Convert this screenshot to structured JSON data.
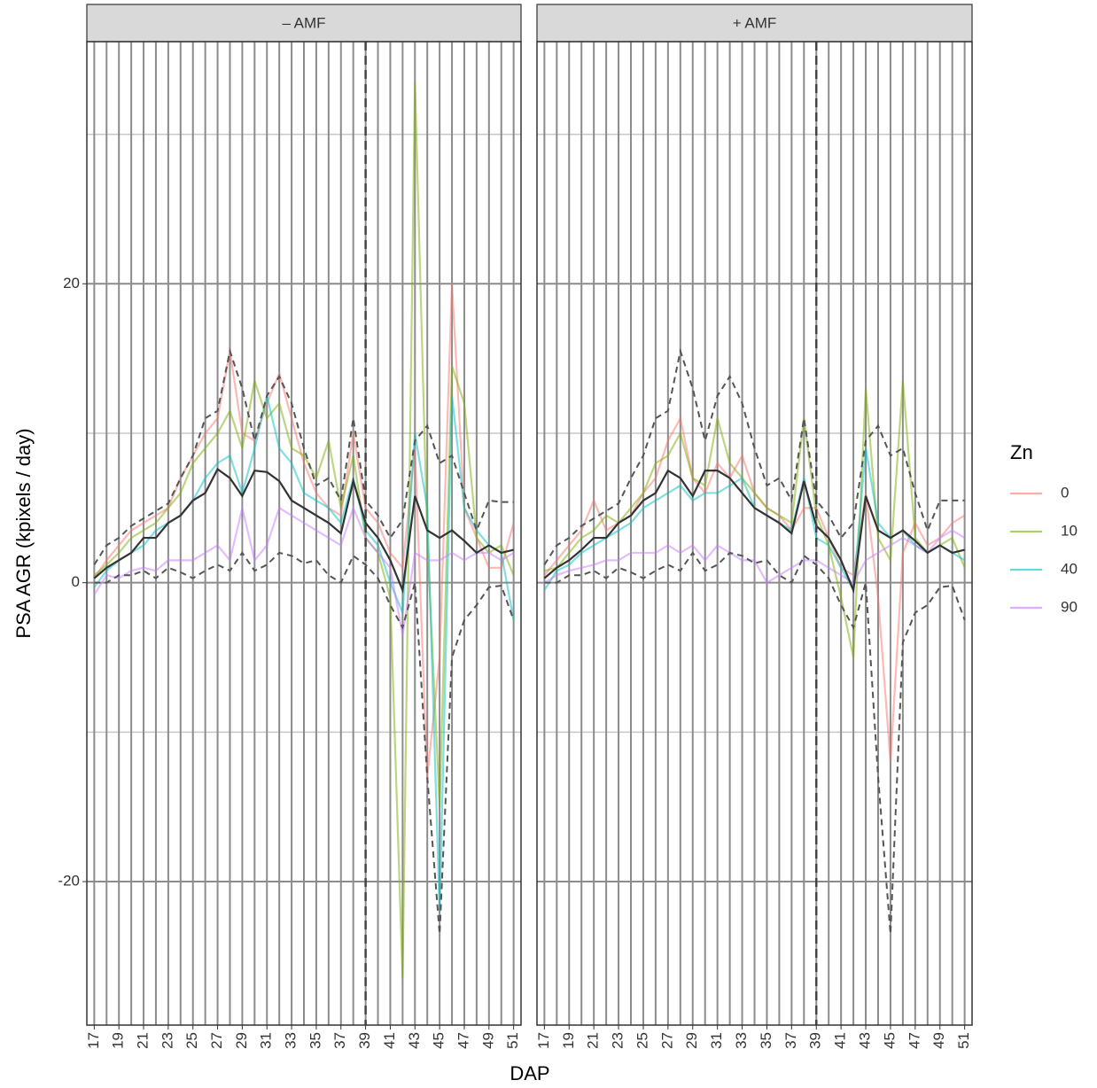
{
  "chart_data": [
    {
      "type": "line",
      "title": "– AMF",
      "xlabel": "DAP",
      "ylabel": "PSA AGR (kpixels / day)",
      "legend_title": "Zn",
      "legend": "right",
      "x": [
        17,
        18,
        19,
        20,
        21,
        22,
        23,
        24,
        25,
        26,
        27,
        28,
        29,
        30,
        31,
        32,
        33,
        34,
        35,
        36,
        37,
        38,
        39,
        40,
        41,
        42,
        43,
        44,
        45,
        46,
        47,
        48,
        49,
        50,
        51
      ],
      "xlim": [
        16.4,
        51.6
      ],
      "xticks": [
        17,
        19,
        21,
        23,
        25,
        27,
        29,
        31,
        33,
        35,
        37,
        39,
        41,
        43,
        45,
        47,
        49,
        51
      ],
      "ylim": [
        -29.6,
        36.2
      ],
      "yticks": [
        -20,
        0,
        20
      ],
      "yminor": [
        -10,
        10,
        30
      ],
      "grid": true,
      "vline": 39,
      "series": [
        {
          "name": "0",
          "color": "#F8766D",
          "values": [
            0.3,
            1.5,
            2.5,
            3.5,
            4,
            4.5,
            5,
            7,
            8.5,
            10,
            11,
            15.5,
            10,
            9.5,
            12,
            14,
            11,
            8,
            6,
            5,
            4.5,
            10,
            5,
            4,
            2,
            1,
            9,
            -13,
            -5,
            20,
            5,
            3,
            1,
            1,
            4
          ]
        },
        {
          "name": "10",
          "color": "#7CAE00",
          "values": [
            0.5,
            1.2,
            2,
            3,
            3.5,
            4,
            5,
            6,
            8,
            9,
            10,
            11.5,
            9,
            13.5,
            11,
            12,
            9,
            8.5,
            7,
            9.5,
            5,
            8.5,
            3,
            2,
            -1,
            -26.5,
            33.5,
            3,
            -15,
            14.5,
            12,
            3,
            2,
            2.5,
            0.5
          ]
        },
        {
          "name": "40",
          "color": "#00BFC4",
          "values": [
            -0.3,
            0.8,
            1.5,
            2,
            2.5,
            3.5,
            4,
            4.5,
            5.5,
            7,
            8,
            8.5,
            6,
            9,
            12.5,
            9,
            8,
            6,
            5.5,
            5,
            4,
            7,
            3.5,
            2.5,
            0,
            -2,
            10,
            5,
            -22,
            12.5,
            5,
            3.5,
            2.5,
            2,
            -2.5
          ]
        },
        {
          "name": "90",
          "color": "#C77CFF",
          "values": [
            -0.8,
            0.5,
            0.3,
            0.8,
            1,
            0.8,
            1.5,
            1.5,
            1.5,
            2,
            2.5,
            1.5,
            5,
            1.5,
            2.5,
            5,
            4.5,
            4,
            3.5,
            3,
            2.5,
            5,
            3,
            2,
            1,
            -3.5,
            2,
            1.5,
            1.5,
            2,
            1.5,
            2,
            2,
            1.5,
            2
          ]
        },
        {
          "color": "#555555",
          "dash": true,
          "values": [
            1.2,
            2.5,
            3,
            3.8,
            4.3,
            4.8,
            5.3,
            7,
            8.5,
            11,
            11.5,
            15.5,
            13,
            9.5,
            12.5,
            13.8,
            12,
            9,
            6.5,
            7,
            5.5,
            11,
            5.5,
            4.5,
            3,
            4.2,
            9.5,
            10.5,
            8,
            8.5,
            6,
            3.5,
            5.5,
            5.4,
            5.4
          ]
        },
        {
          "color": "#555555",
          "dash": true,
          "values": [
            0,
            0,
            0.5,
            0.5,
            0.8,
            0.3,
            1,
            0.7,
            0.3,
            0.8,
            1.2,
            0.8,
            2,
            0.8,
            1.2,
            2,
            1.8,
            1.3,
            1.5,
            0.5,
            0,
            1.8,
            1.2,
            0.3,
            -1.5,
            -3,
            0,
            -13,
            -23.5,
            -5,
            -2.5,
            -1.5,
            -0.3,
            -0.2,
            -2.5
          ]
        },
        {
          "color": "#333333",
          "values": [
            0.3,
            1,
            1.5,
            2,
            3,
            3,
            4,
            4.5,
            5.5,
            6,
            7.6,
            7,
            5.8,
            7.5,
            7.4,
            6.8,
            5.5,
            5,
            4.5,
            4,
            3.3,
            6.8,
            4,
            3,
            1.5,
            -0.5,
            5.8,
            3.5,
            3,
            3.5,
            2.8,
            2,
            2.5,
            2,
            2.2
          ]
        }
      ]
    },
    {
      "type": "line",
      "title": "+ AMF",
      "x": [
        17,
        18,
        19,
        20,
        21,
        22,
        23,
        24,
        25,
        26,
        27,
        28,
        29,
        30,
        31,
        32,
        33,
        34,
        35,
        36,
        37,
        38,
        39,
        40,
        41,
        42,
        43,
        44,
        45,
        46,
        47,
        48,
        49,
        50,
        51
      ],
      "xlim": [
        16.4,
        51.6
      ],
      "xticks": [
        17,
        19,
        21,
        23,
        25,
        27,
        29,
        31,
        33,
        35,
        37,
        39,
        41,
        43,
        45,
        47,
        49,
        51
      ],
      "ylim": [
        -29.6,
        36.2
      ],
      "yticks": [
        -20,
        0,
        20
      ],
      "yminor": [
        -10,
        10,
        30
      ],
      "grid": true,
      "vline": 39,
      "series": [
        {
          "color": "#F8766D",
          "values": [
            0.5,
            1.5,
            2.5,
            3.5,
            5.5,
            3.5,
            4,
            4.5,
            6,
            7,
            9.5,
            11,
            7,
            6,
            8,
            7,
            8.5,
            6,
            5,
            4.5,
            3.5,
            5,
            5,
            3,
            1,
            0.5,
            6,
            -1,
            -12,
            2,
            4,
            2.5,
            3,
            4,
            4.5
          ]
        },
        {
          "color": "#7CAE00",
          "values": [
            0.8,
            1,
            2,
            3,
            3.5,
            4.5,
            4,
            5,
            6,
            8,
            8.5,
            10,
            7,
            6.5,
            11,
            8,
            7,
            6,
            5,
            4.5,
            4,
            11,
            4.5,
            2.5,
            -1,
            -5,
            13,
            3,
            1.5,
            13.5,
            3,
            2,
            2.5,
            3,
            1
          ]
        },
        {
          "color": "#00BFC4",
          "values": [
            -0.5,
            0.8,
            1.2,
            2,
            2.5,
            3,
            3.5,
            4,
            5,
            5.5,
            6,
            6.5,
            5.5,
            6,
            6,
            6.5,
            7,
            5,
            4.5,
            4,
            3.5,
            7,
            3,
            2.5,
            1,
            -0.5,
            9,
            4,
            3,
            3.5,
            2.5,
            2,
            2.5,
            2,
            1.5
          ]
        },
        {
          "color": "#C77CFF",
          "values": [
            0,
            0.5,
            0.8,
            1,
            1.2,
            1.5,
            1.5,
            2,
            2,
            2,
            2.5,
            2,
            2.5,
            1.5,
            2.5,
            2,
            1.5,
            1.5,
            0,
            0.5,
            1,
            1.5,
            1.5,
            1,
            0.5,
            0,
            1.5,
            2,
            2.5,
            3,
            2.5,
            2,
            3,
            3.5,
            3
          ]
        },
        {
          "color": "#555555",
          "dash": true,
          "values": [
            1.2,
            2.5,
            3,
            3.8,
            4.3,
            4.8,
            5.3,
            7,
            8.5,
            11,
            11.5,
            15.5,
            13,
            9.5,
            12.5,
            13.8,
            12,
            9,
            6.5,
            7,
            5.5,
            11,
            5.5,
            4.5,
            3,
            4,
            9.5,
            10.5,
            8.5,
            9,
            6,
            3.5,
            5.5,
            5.5,
            5.5
          ]
        },
        {
          "color": "#555555",
          "dash": true,
          "values": [
            0,
            0,
            0.5,
            0.5,
            0.8,
            0.3,
            1,
            0.7,
            0.3,
            0.8,
            1.2,
            0.8,
            2,
            0.8,
            1.2,
            2,
            1.8,
            1.3,
            1.5,
            0.5,
            0,
            1.8,
            1.2,
            0.3,
            -1.5,
            -3,
            0,
            -13,
            -23.5,
            -4,
            -2,
            -1.5,
            -0.3,
            -0.2,
            -2.5
          ]
        },
        {
          "color": "#333333",
          "values": [
            0.3,
            1,
            1.5,
            2.2,
            3,
            3,
            4,
            4.5,
            5.5,
            6,
            7.5,
            7,
            5.8,
            7.5,
            7.5,
            7,
            6,
            5,
            4.5,
            4,
            3.3,
            6.8,
            3.8,
            3,
            1.5,
            -0.5,
            5.8,
            3.5,
            3,
            3.5,
            2.8,
            2,
            2.5,
            2,
            2.2
          ]
        }
      ]
    }
  ]
}
